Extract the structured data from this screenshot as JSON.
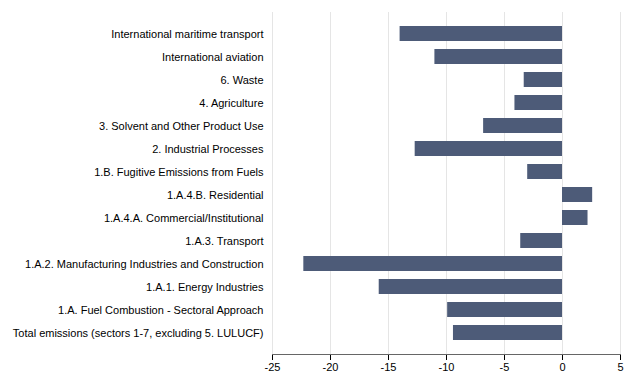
{
  "chart_data": {
    "type": "bar",
    "orientation": "horizontal",
    "categories": [
      "International maritime transport",
      "International aviation",
      "6. Waste",
      "4. Agriculture",
      "3. Solvent and Other Product Use",
      "2. Industrial Processes",
      "1.B. Fugitive Emissions from Fuels",
      "1.A.4.B. Residential",
      "1.A.4.A. Commercial/Institutional",
      "1.A.3. Transport",
      "1.A.2. Manufacturing Industries and Construction",
      "1.A.1. Energy Industries",
      "1.A. Fuel Combustion - Sectoral Approach",
      "Total emissions (sectors 1-7, excluding 5. LULUCF)"
    ],
    "values": [
      -14.0,
      -11.0,
      -3.3,
      -4.1,
      -6.8,
      -12.7,
      -3.0,
      2.6,
      2.2,
      -3.6,
      -22.3,
      -15.8,
      -9.9,
      -9.4
    ],
    "color": "#4d5b78",
    "xlim": [
      -25,
      5
    ],
    "xticks": [
      -25,
      -20,
      -15,
      -10,
      -5,
      0,
      5
    ],
    "grid": true
  }
}
